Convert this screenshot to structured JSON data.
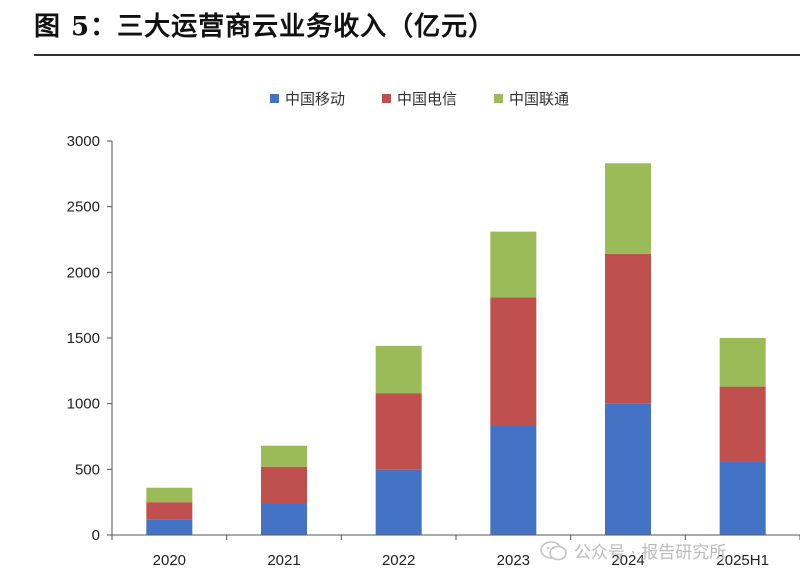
{
  "title": "图 5：三大运营商云业务收入（亿元）",
  "watermark": "公众号 · 报告研究所",
  "chart_data": {
    "type": "bar",
    "stacked": true,
    "categories": [
      "2020",
      "2021",
      "2022",
      "2023",
      "2024",
      "2025H1"
    ],
    "series": [
      {
        "name": "中国移动",
        "color": "#4472C4",
        "values": [
          120,
          240,
          500,
          830,
          1000,
          560
        ]
      },
      {
        "name": "中国电信",
        "color": "#C0504D",
        "values": [
          130,
          280,
          580,
          980,
          1140,
          570
        ]
      },
      {
        "name": "中国联通",
        "color": "#9BBB59",
        "values": [
          110,
          160,
          360,
          500,
          690,
          370
        ]
      }
    ],
    "ylim": [
      0,
      3000
    ],
    "yticks": [
      0,
      500,
      1000,
      1500,
      2000,
      2500,
      3000
    ],
    "legend_position": "top-center",
    "grid": false
  }
}
